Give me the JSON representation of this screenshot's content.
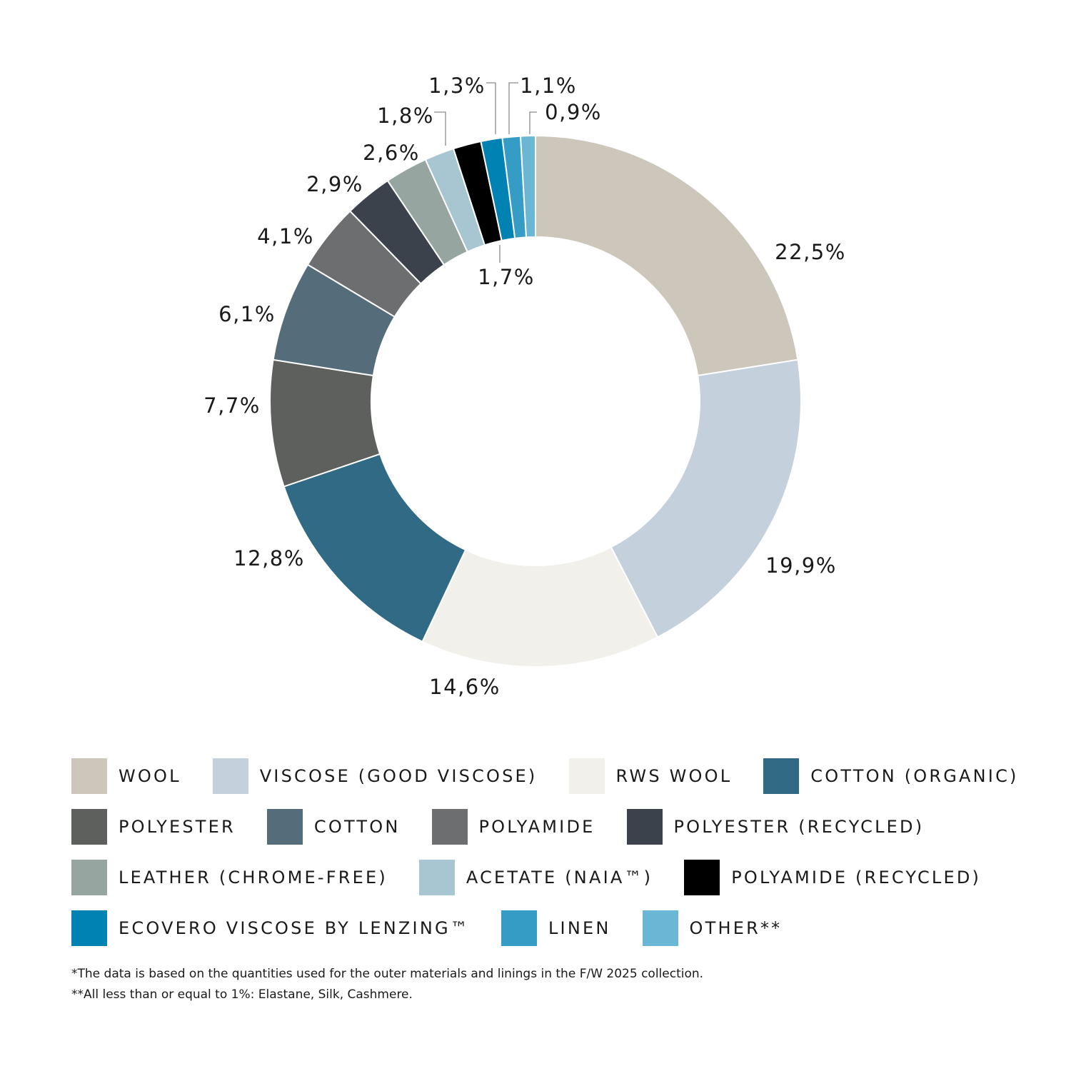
{
  "chart_data": {
    "type": "pie",
    "variant": "donut",
    "slices": [
      {
        "name": "WOOL",
        "value": 22.5,
        "label": "22,5%",
        "color": "#cdc7bb"
      },
      {
        "name": "VISCOSE (GOOD VISCOSE)",
        "value": 19.9,
        "label": "19,9%",
        "color": "#c4d1dd"
      },
      {
        "name": "RWS WOOL",
        "value": 14.6,
        "label": "14,6%",
        "color": "#f2f0eb"
      },
      {
        "name": "COTTON (ORGANIC)",
        "value": 12.8,
        "label": "12,8%",
        "color": "#306a84"
      },
      {
        "name": "POLYESTER",
        "value": 7.7,
        "label": "7,7%",
        "color": "#5e605d"
      },
      {
        "name": "COTTON",
        "value": 6.1,
        "label": "6,1%",
        "color": "#556c7a"
      },
      {
        "name": "POLYAMIDE",
        "value": 4.1,
        "label": "4,1%",
        "color": "#6d6e70"
      },
      {
        "name": "POLYESTER (RECYCLED)",
        "value": 2.9,
        "label": "2,9%",
        "color": "#3c424c"
      },
      {
        "name": "LEATHER (CHROME-FREE)",
        "value": 2.6,
        "label": "2,6%",
        "color": "#97a5a1"
      },
      {
        "name": "ACETATE (NAIA™)",
        "value": 1.8,
        "label": "1,8%",
        "color": "#a8c6d1"
      },
      {
        "name": "POLYAMIDE (RECYCLED)",
        "value": 1.7,
        "label": "1,7%",
        "color": "#000000"
      },
      {
        "name": "ECOVERO VISCOSE BY LENZING™",
        "value": 1.3,
        "label": "1,3%",
        "color": "#0083b3"
      },
      {
        "name": "LINEN",
        "value": 1.1,
        "label": "1,1%",
        "color": "#359cc6"
      },
      {
        "name": "OTHER**",
        "value": 0.9,
        "label": "0,9%",
        "color": "#6ab6d5"
      }
    ],
    "legend_placement": "bottom"
  },
  "footnotes": [
    "*The data is based on the quantities used for the outer materials and linings in the F/W 2025 collection.",
    "**All less than or equal to 1%: Elastane, Silk, Cashmere."
  ]
}
